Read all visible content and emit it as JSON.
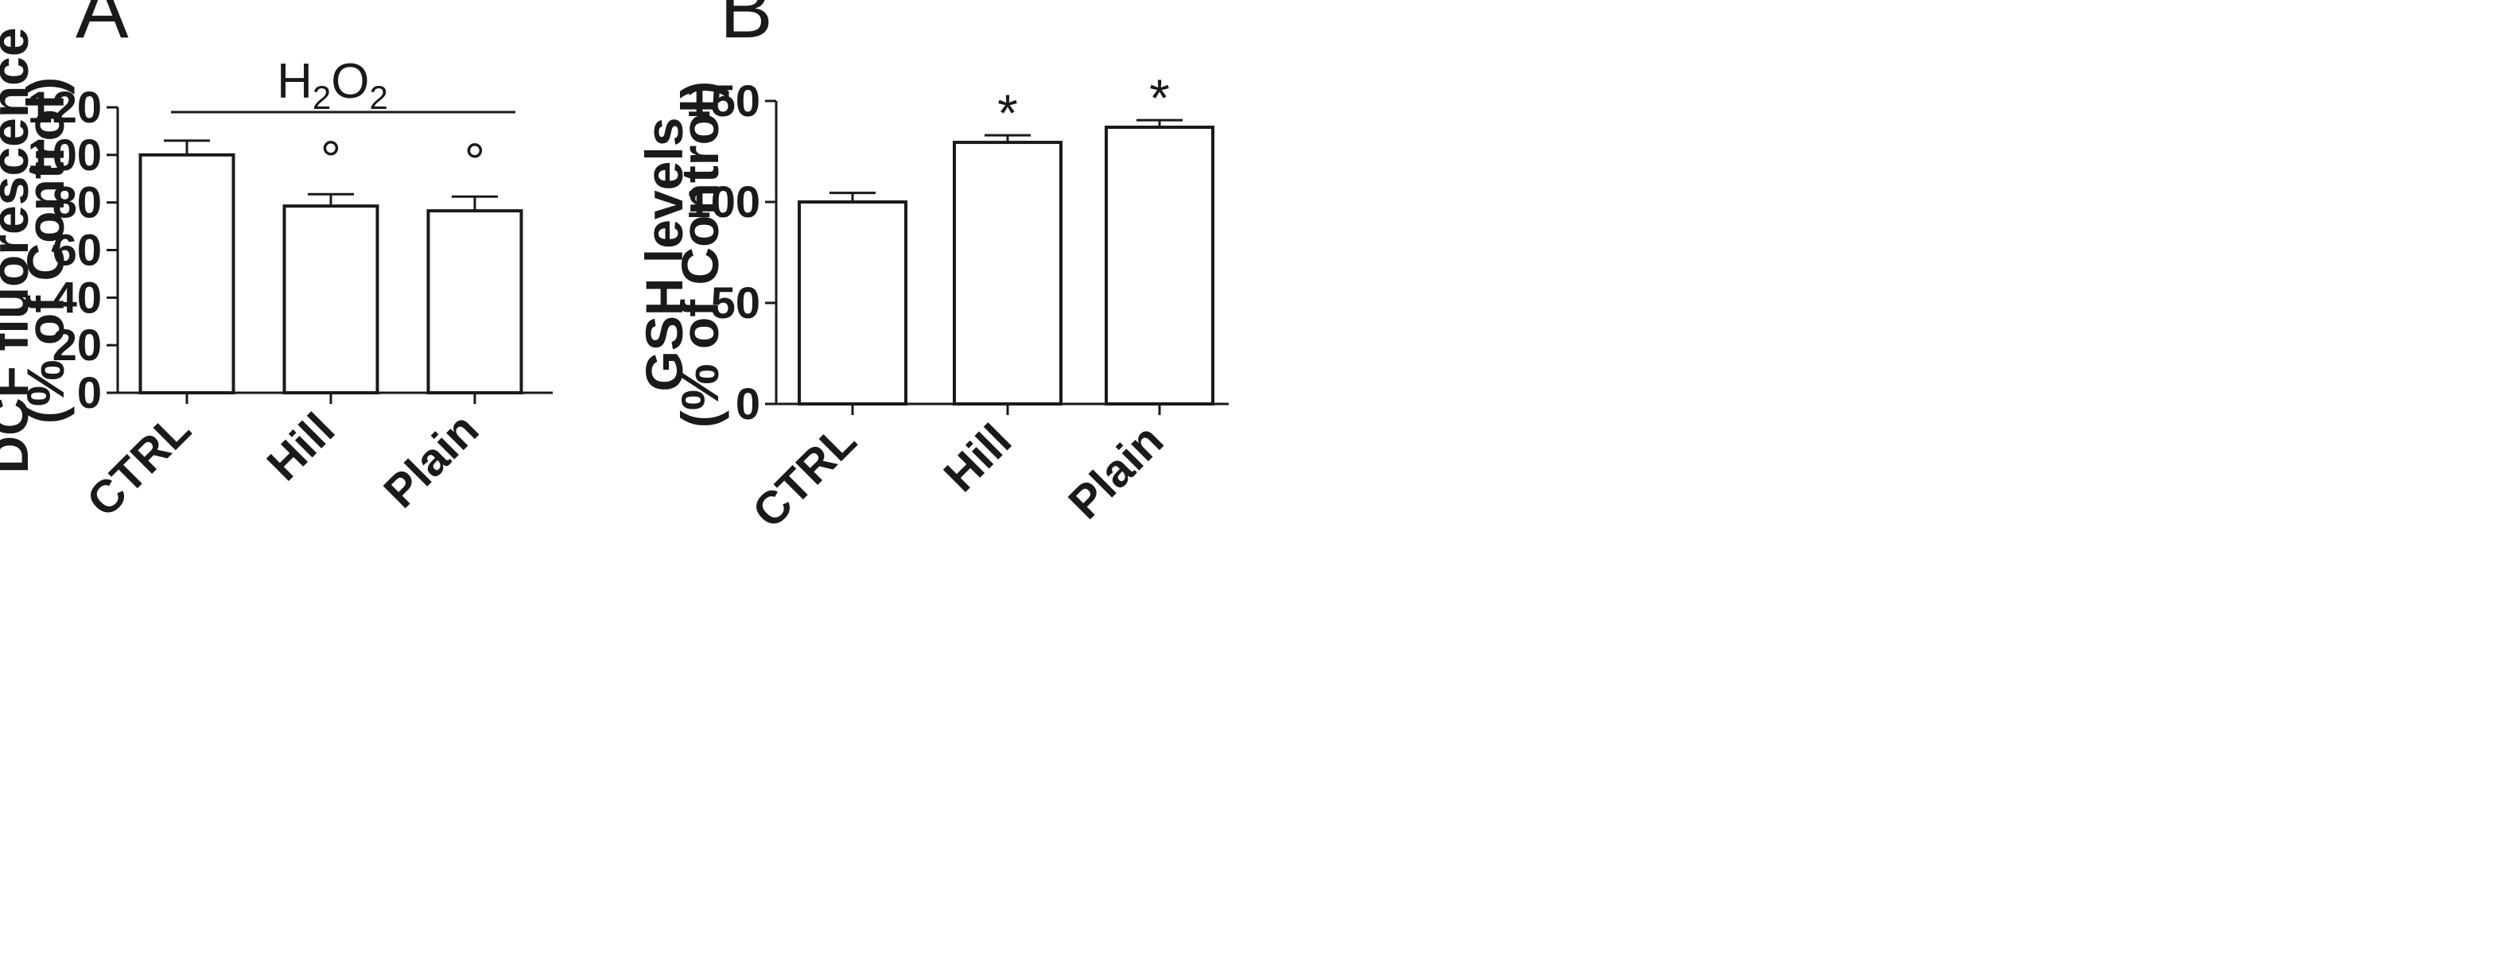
{
  "chart_data": [
    {
      "type": "bar",
      "panel_label": "A",
      "title": "",
      "xlabel": "",
      "ylabel_lines": [
        "DCF fluorescence",
        "(% of Control)"
      ],
      "ylim": [
        0,
        120
      ],
      "yticks": [
        0,
        20,
        40,
        60,
        80,
        100,
        120
      ],
      "categories": [
        "CTRL",
        "Hill",
        "Plain"
      ],
      "values": [
        100,
        78.5,
        76.5
      ],
      "errors": [
        6,
        5,
        6
      ],
      "significance": [
        "",
        "°",
        "°"
      ],
      "treatment_bracket": {
        "label": "H",
        "sub1": "2",
        "label2": "O",
        "sub2": "2",
        "y_value": 118
      },
      "legend": "none",
      "grid": false
    },
    {
      "type": "bar",
      "panel_label": "B",
      "title": "",
      "xlabel": "",
      "ylabel_lines": [
        "GSH levels",
        "(% of Control)"
      ],
      "ylim": [
        0,
        150
      ],
      "yticks": [
        0,
        50,
        100,
        150
      ],
      "categories": [
        "CTRL",
        "Hill",
        "Plain"
      ],
      "values": [
        100,
        129.5,
        137
      ],
      "errors": [
        4.5,
        3.5,
        3.5
      ],
      "significance": [
        "",
        "*",
        "*"
      ],
      "legend": "none",
      "grid": false
    }
  ]
}
